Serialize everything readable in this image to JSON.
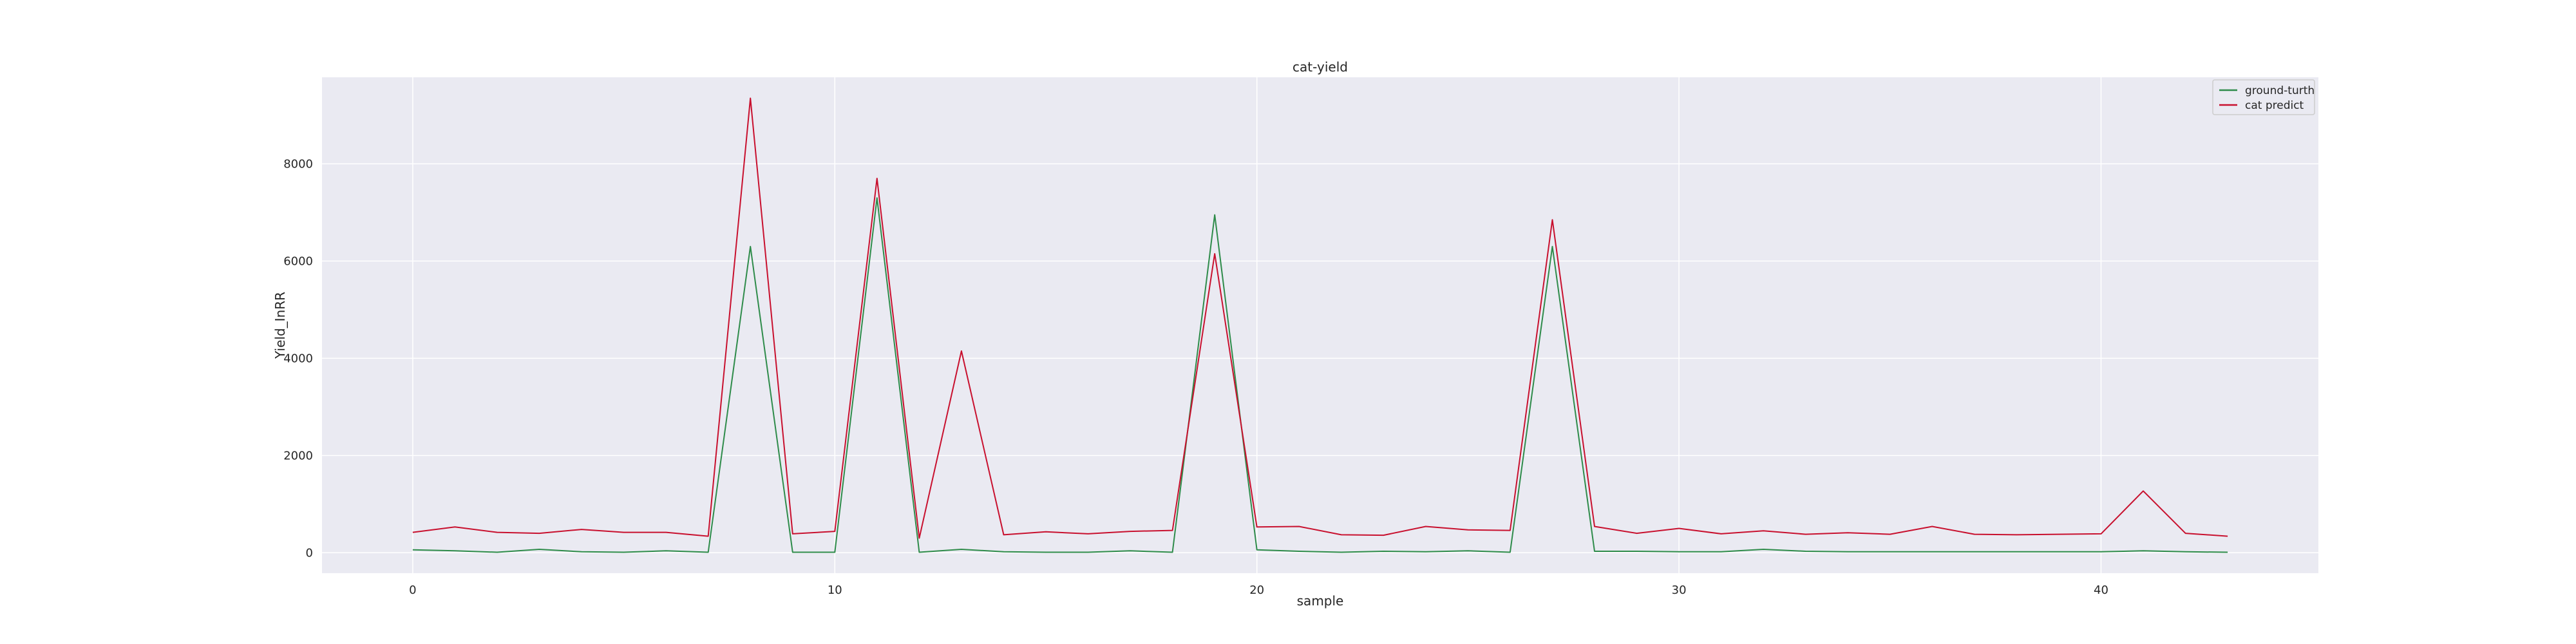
{
  "chart_data": {
    "type": "line",
    "title": "cat-yield",
    "xlabel": "sample",
    "ylabel": "Yield_InRR",
    "xlim": [
      -2.15,
      45.15
    ],
    "ylim": [
      -420,
      9780
    ],
    "xticks": [
      0,
      10,
      20,
      30,
      40
    ],
    "xtick_labels": [
      "0",
      "10",
      "20",
      "30",
      "40"
    ],
    "yticks": [
      0,
      2000,
      4000,
      6000,
      8000
    ],
    "ytick_labels": [
      "0",
      "2000",
      "4000",
      "6000",
      "8000"
    ],
    "grid": true,
    "legend": "top-right",
    "x": [
      0,
      1,
      2,
      3,
      4,
      5,
      6,
      7,
      8,
      9,
      10,
      11,
      12,
      13,
      14,
      15,
      16,
      17,
      18,
      19,
      20,
      21,
      22,
      23,
      24,
      25,
      26,
      27,
      28,
      29,
      30,
      31,
      32,
      33,
      34,
      35,
      36,
      37,
      38,
      39,
      40,
      41,
      42,
      43
    ],
    "series": [
      {
        "name": "ground-turth",
        "color": "#2e8b4a",
        "values": [
          60,
          40,
          10,
          70,
          20,
          10,
          40,
          10,
          6300,
          10,
          10,
          7300,
          10,
          70,
          20,
          10,
          10,
          40,
          10,
          6950,
          60,
          30,
          10,
          30,
          20,
          40,
          10,
          6300,
          30,
          30,
          20,
          20,
          70,
          30,
          20,
          20,
          20,
          20,
          20,
          20,
          20,
          40,
          20,
          10
        ]
      },
      {
        "name": "cat predict",
        "color": "#c8102e",
        "values": [
          420,
          530,
          420,
          400,
          480,
          420,
          420,
          340,
          9350,
          390,
          440,
          7700,
          300,
          4150,
          370,
          430,
          390,
          440,
          460,
          6150,
          530,
          540,
          370,
          360,
          540,
          470,
          460,
          6850,
          540,
          400,
          500,
          390,
          450,
          380,
          410,
          380,
          540,
          380,
          370,
          380,
          390,
          1270,
          400,
          340
        ]
      }
    ]
  }
}
